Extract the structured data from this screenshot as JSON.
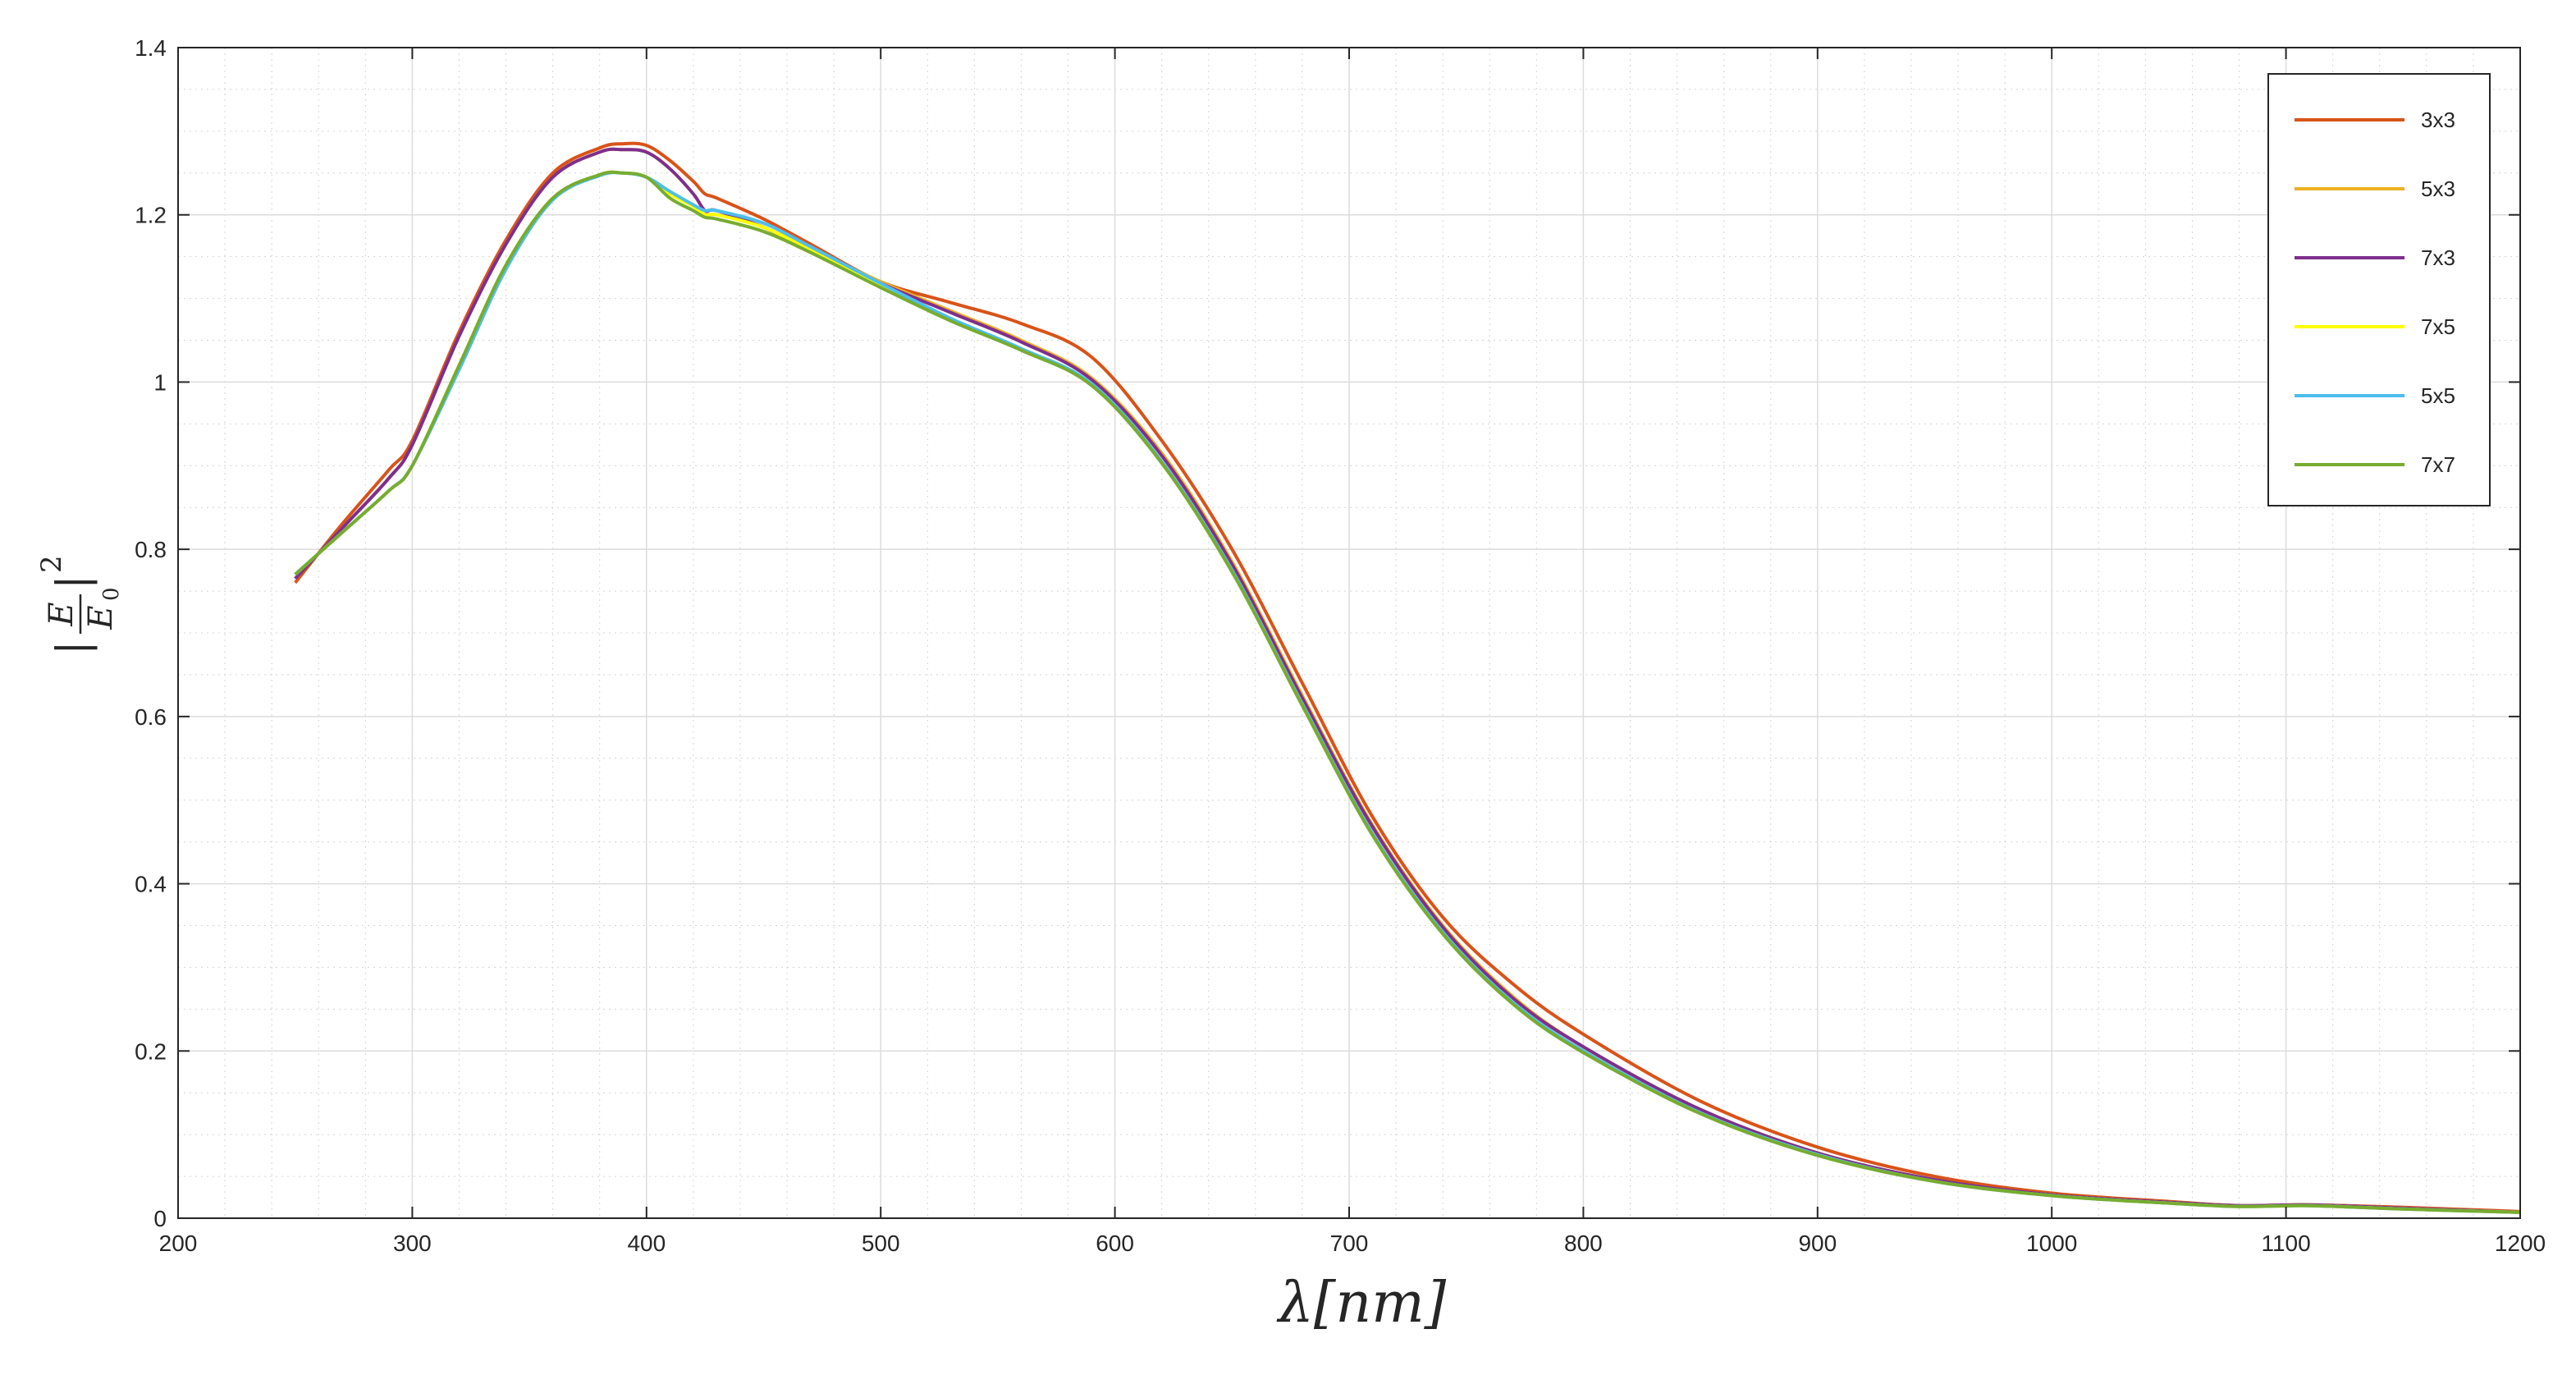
{
  "chart_data": {
    "type": "line",
    "title": "",
    "xlabel": "λ[nm]",
    "ylabel": "|E/E0|^2",
    "xlim": [
      200,
      1200
    ],
    "ylim": [
      0,
      1.4
    ],
    "xticks": [
      200,
      300,
      400,
      500,
      600,
      700,
      800,
      900,
      1000,
      1100,
      1200
    ],
    "xtick_labels": [
      "200",
      "300",
      "400",
      "500",
      "600",
      "700",
      "800",
      "900",
      "1000",
      "1100",
      "1200"
    ],
    "yticks": [
      0,
      0.2,
      0.4,
      0.6,
      0.8,
      1,
      1.2,
      1.4
    ],
    "ytick_labels": [
      "0",
      "0.2",
      "0.4",
      "0.6",
      "0.8",
      "1",
      "1.2",
      "1.4"
    ],
    "grid": "major and minor (dotted minor)",
    "legend": "top-right",
    "x": [
      250,
      270,
      290,
      300,
      320,
      340,
      360,
      380,
      390,
      400,
      410,
      420,
      425,
      430,
      450,
      470,
      500,
      530,
      560,
      590,
      620,
      650,
      680,
      710,
      740,
      770,
      800,
      850,
      900,
      950,
      1000,
      1050,
      1080,
      1110,
      1150,
      1200
    ],
    "series": [
      {
        "name": "3x3",
        "color": "#d95319",
        "values": [
          0.76,
          0.83,
          0.895,
          0.93,
          1.06,
          1.17,
          1.25,
          1.28,
          1.285,
          1.283,
          1.265,
          1.24,
          1.225,
          1.22,
          1.195,
          1.165,
          1.12,
          1.095,
          1.07,
          1.03,
          0.93,
          0.8,
          0.64,
          0.48,
          0.36,
          0.28,
          0.22,
          0.14,
          0.085,
          0.05,
          0.03,
          0.02,
          0.015,
          0.016,
          0.013,
          0.008
        ]
      },
      {
        "name": "5x3",
        "color": "#edb120",
        "values": [
          0.765,
          0.825,
          0.885,
          0.925,
          1.055,
          1.165,
          1.245,
          1.275,
          1.278,
          1.275,
          1.255,
          1.225,
          1.205,
          1.205,
          1.185,
          1.16,
          1.12,
          1.085,
          1.05,
          1.005,
          0.915,
          0.785,
          0.625,
          0.47,
          0.35,
          0.265,
          0.205,
          0.13,
          0.078,
          0.046,
          0.028,
          0.019,
          0.015,
          0.016,
          0.012,
          0.007
        ]
      },
      {
        "name": "7x3",
        "color": "#7e2f8e",
        "values": [
          0.765,
          0.825,
          0.885,
          0.925,
          1.055,
          1.165,
          1.245,
          1.275,
          1.278,
          1.275,
          1.255,
          1.225,
          1.205,
          1.205,
          1.185,
          1.158,
          1.118,
          1.083,
          1.048,
          1.003,
          0.912,
          0.782,
          0.622,
          0.468,
          0.348,
          0.263,
          0.205,
          0.13,
          0.078,
          0.046,
          0.028,
          0.019,
          0.015,
          0.016,
          0.012,
          0.007
        ]
      },
      {
        "name": "7x5",
        "color": "#ffff00",
        "values": [
          0.77,
          0.82,
          0.87,
          0.9,
          1.02,
          1.14,
          1.22,
          1.248,
          1.25,
          1.245,
          1.225,
          1.21,
          1.2,
          1.2,
          1.185,
          1.158,
          1.115,
          1.075,
          1.04,
          0.998,
          0.905,
          0.775,
          0.615,
          0.46,
          0.342,
          0.258,
          0.2,
          0.126,
          0.076,
          0.044,
          0.027,
          0.018,
          0.014,
          0.015,
          0.011,
          0.007
        ]
      },
      {
        "name": "5x5",
        "color": "#4dbeee",
        "values": [
          0.77,
          0.82,
          0.87,
          0.9,
          1.015,
          1.135,
          1.218,
          1.247,
          1.25,
          1.245,
          1.228,
          1.212,
          1.205,
          1.205,
          1.19,
          1.162,
          1.118,
          1.076,
          1.04,
          0.998,
          0.905,
          0.775,
          0.615,
          0.46,
          0.342,
          0.258,
          0.2,
          0.126,
          0.076,
          0.044,
          0.027,
          0.018,
          0.014,
          0.015,
          0.011,
          0.007
        ]
      },
      {
        "name": "7x7",
        "color": "#77ac30",
        "values": [
          0.77,
          0.82,
          0.87,
          0.9,
          1.02,
          1.14,
          1.22,
          1.248,
          1.25,
          1.245,
          1.22,
          1.205,
          1.197,
          1.195,
          1.18,
          1.155,
          1.113,
          1.073,
          1.038,
          0.996,
          0.903,
          0.773,
          0.613,
          0.458,
          0.34,
          0.256,
          0.198,
          0.125,
          0.075,
          0.044,
          0.027,
          0.018,
          0.014,
          0.015,
          0.011,
          0.007
        ]
      }
    ]
  }
}
